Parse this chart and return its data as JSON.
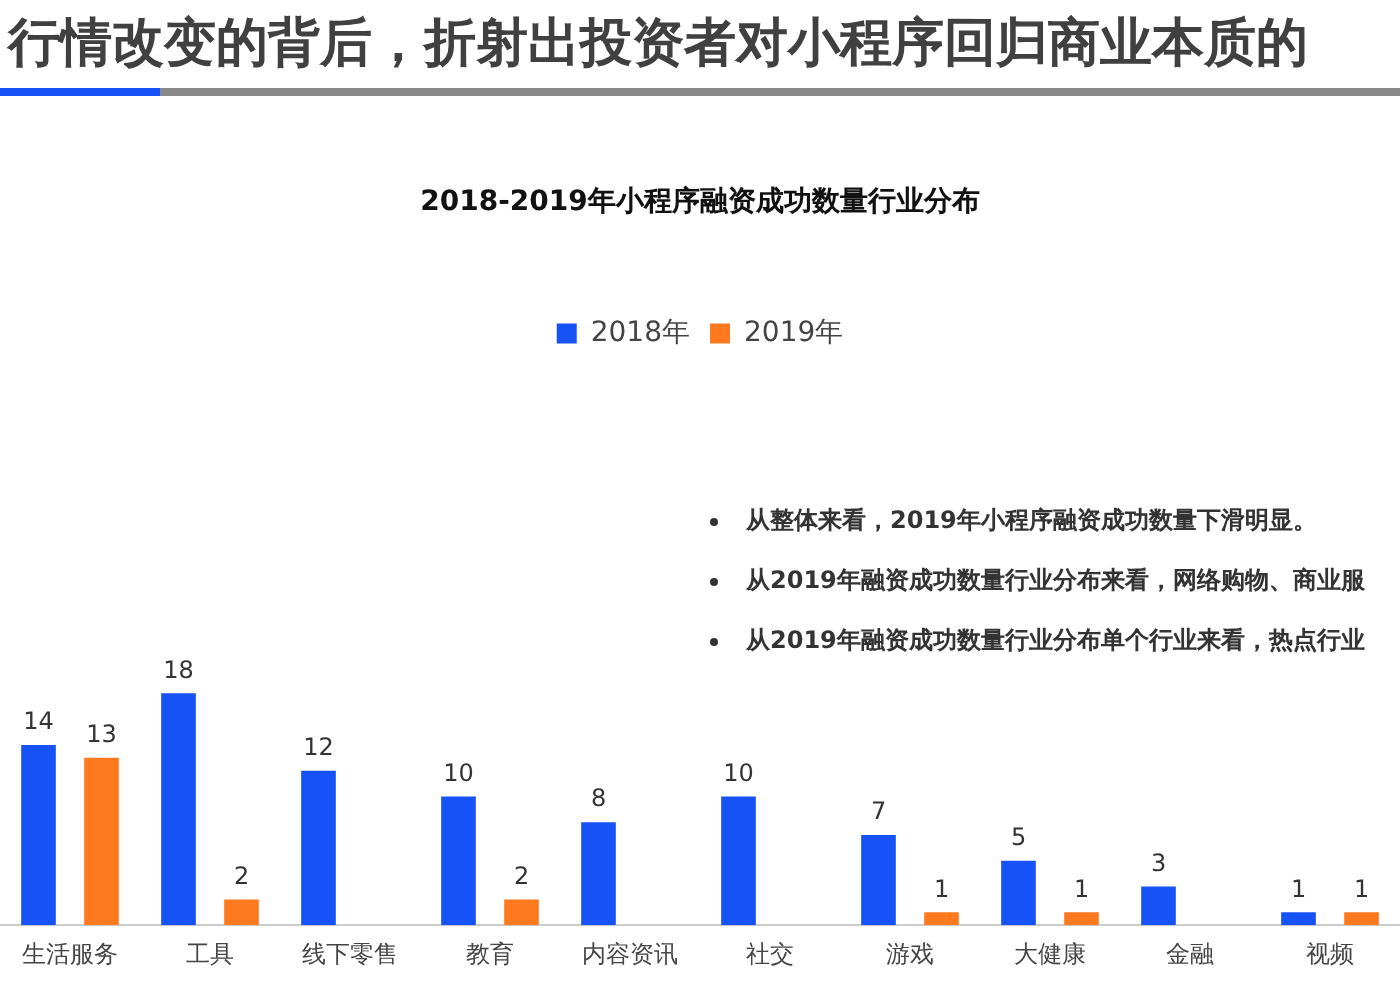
{
  "chart_data": {
    "type": "bar",
    "title": "行情改变的背后，折射出投资者对小程序回归商业本质的",
    "subtitle": "2018-2019年小程序融资成功数量行业分布",
    "categories": [
      "生活服务",
      "工具",
      "线下零售",
      "教育",
      "内容资讯",
      "社交",
      "游戏",
      "大健康",
      "金融",
      "视频"
    ],
    "series": [
      {
        "name": "2018年",
        "color": "#1652f5",
        "values": [
          14,
          18,
          12,
          10,
          8,
          10,
          7,
          5,
          3,
          1
        ]
      },
      {
        "name": "2019年",
        "color": "#ff7a1f",
        "values": [
          13,
          2,
          null,
          2,
          null,
          null,
          1,
          1,
          null,
          1
        ]
      }
    ],
    "data_labels": true,
    "legend": "top",
    "grid": false,
    "tick_labels": "x",
    "annotations": [
      "从整体来看，2019年小程序融资成功数量下滑明显。",
      "从2019年融资成功数量行业分布来看，网络购物、商业服",
      "从2019年融资成功数量行业分布单个行业来看，热点行业"
    ]
  }
}
